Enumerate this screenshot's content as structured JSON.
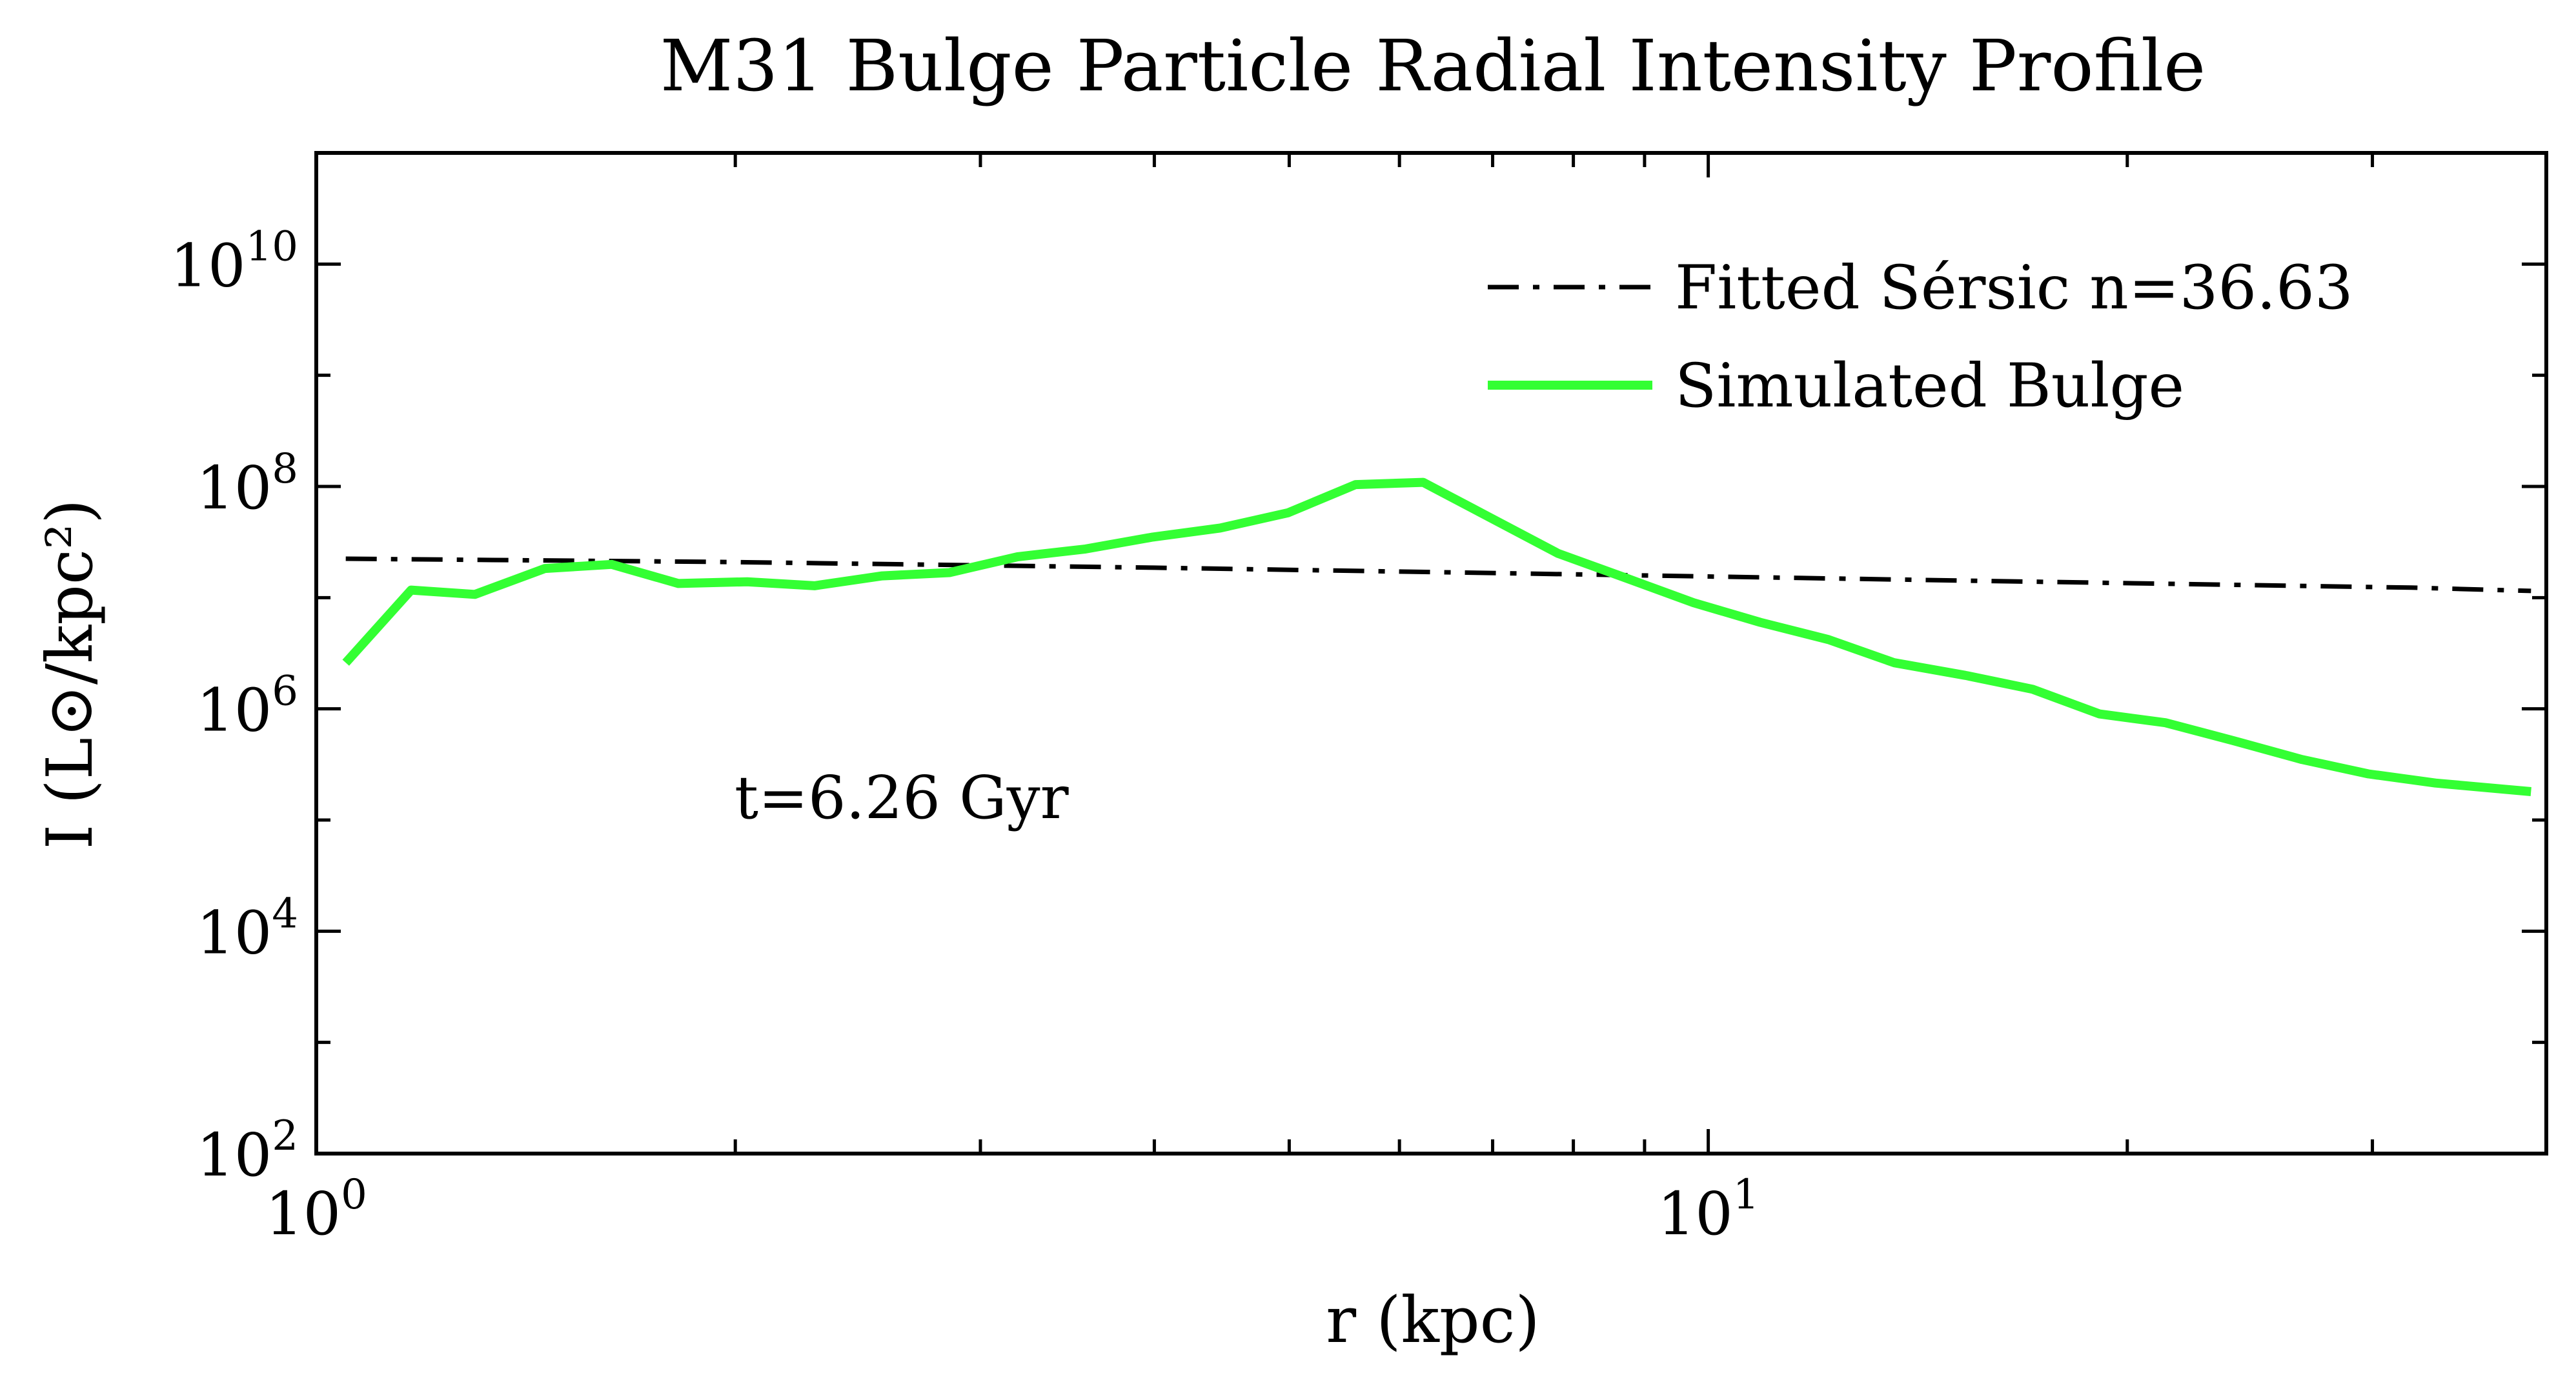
{
  "chart_data": {
    "type": "line",
    "title": "M31 Bulge Particle Radial Intensity Profile",
    "xlabel": "r (kpc)",
    "ylabel": "I (L⊙/kpc²)",
    "xscale": "log",
    "yscale": "log",
    "xlim": [
      1.0,
      40.0
    ],
    "ylim": [
      100,
      100000000000
    ],
    "x_ticks": [
      {
        "value": 1,
        "base": "10",
        "exp": "0"
      },
      {
        "value": 10,
        "base": "10",
        "exp": "1"
      }
    ],
    "y_ticks": [
      {
        "value": 100,
        "base": "10",
        "exp": "2"
      },
      {
        "value": 10000,
        "base": "10",
        "exp": "4"
      },
      {
        "value": 1000000,
        "base": "10",
        "exp": "6"
      },
      {
        "value": 100000000,
        "base": "10",
        "exp": "8"
      },
      {
        "value": 10000000000,
        "base": "10",
        "exp": "10"
      }
    ],
    "grid": false,
    "legend_position": "top-right",
    "annotation": "t=6.26 Gyr",
    "series": [
      {
        "name": "Fitted Sérsic n=36.63",
        "color": "#000000",
        "style": "dash-dot",
        "x": [
          1.05,
          2.0,
          4.0,
          8.0,
          16.0,
          32.0,
          39.0
        ],
        "y": [
          22400000,
          20900000,
          18600000,
          16200000,
          14100000,
          12300000,
          11500000
        ]
      },
      {
        "name": "Simulated Bulge",
        "color": "#33ff33",
        "style": "solid",
        "x": [
          1.05,
          1.17,
          1.3,
          1.46,
          1.63,
          1.82,
          2.04,
          2.28,
          2.55,
          2.85,
          3.19,
          3.57,
          3.99,
          4.46,
          4.99,
          5.58,
          6.24,
          6.98,
          7.8,
          8.73,
          9.76,
          10.9,
          12.2,
          13.6,
          15.3,
          17.1,
          19.1,
          21.3,
          23.8,
          26.7,
          29.8,
          33.3,
          39.0
        ],
        "y": [
          2600000,
          11700000,
          10700000,
          18300000,
          19900000,
          13400000,
          13900000,
          12800000,
          15700000,
          16800000,
          23300000,
          27400000,
          35100000,
          42300000,
          58000000,
          104000000,
          109000000,
          52000000,
          25000000,
          15000000,
          9000000,
          6000000,
          4200000,
          2600000,
          2000000,
          1500000,
          900000,
          750000,
          520000,
          350000,
          260000,
          215000,
          180000
        ]
      }
    ]
  }
}
